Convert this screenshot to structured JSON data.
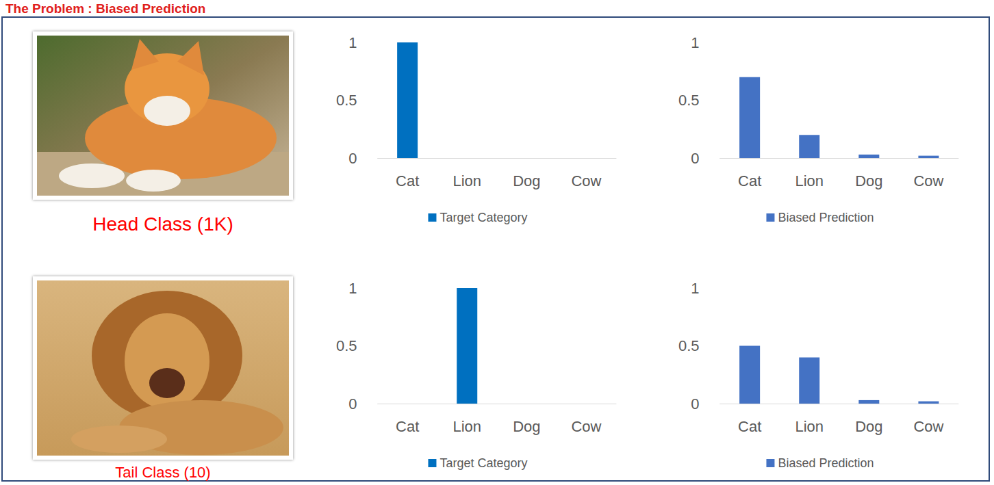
{
  "title": "The Problem : Biased Prediction",
  "captions": [
    "Head Class (1K)",
    "Tail Class (10)"
  ],
  "chart_data": [
    {
      "type": "bar",
      "categories": [
        "Cat",
        "Lion",
        "Dog",
        "Cow"
      ],
      "series": [
        {
          "name": "Target Category",
          "color": "#0070c0",
          "values": [
            1,
            0,
            0,
            0
          ]
        }
      ],
      "ylim": [
        0,
        1
      ],
      "yticks": [
        0,
        0.5,
        1
      ],
      "grid": false,
      "legend": "bottom"
    },
    {
      "type": "bar",
      "categories": [
        "Cat",
        "Lion",
        "Dog",
        "Cow"
      ],
      "series": [
        {
          "name": "Biased Prediction",
          "color": "#4472c4",
          "values": [
            0.7,
            0.2,
            0.03,
            0.02
          ]
        }
      ],
      "ylim": [
        0,
        1
      ],
      "yticks": [
        0,
        0.5,
        1
      ],
      "grid": false,
      "legend": "bottom"
    },
    {
      "type": "bar",
      "categories": [
        "Cat",
        "Lion",
        "Dog",
        "Cow"
      ],
      "series": [
        {
          "name": "Target Category",
          "color": "#0070c0",
          "values": [
            0,
            1,
            0,
            0
          ]
        }
      ],
      "ylim": [
        0,
        1
      ],
      "yticks": [
        0,
        0.5,
        1
      ],
      "grid": false,
      "legend": "bottom"
    },
    {
      "type": "bar",
      "categories": [
        "Cat",
        "Lion",
        "Dog",
        "Cow"
      ],
      "series": [
        {
          "name": "Biased Prediction",
          "color": "#4472c4",
          "values": [
            0.5,
            0.4,
            0.03,
            0.02
          ]
        }
      ],
      "ylim": [
        0,
        1
      ],
      "yticks": [
        0,
        0.5,
        1
      ],
      "grid": false,
      "legend": "bottom"
    }
  ]
}
